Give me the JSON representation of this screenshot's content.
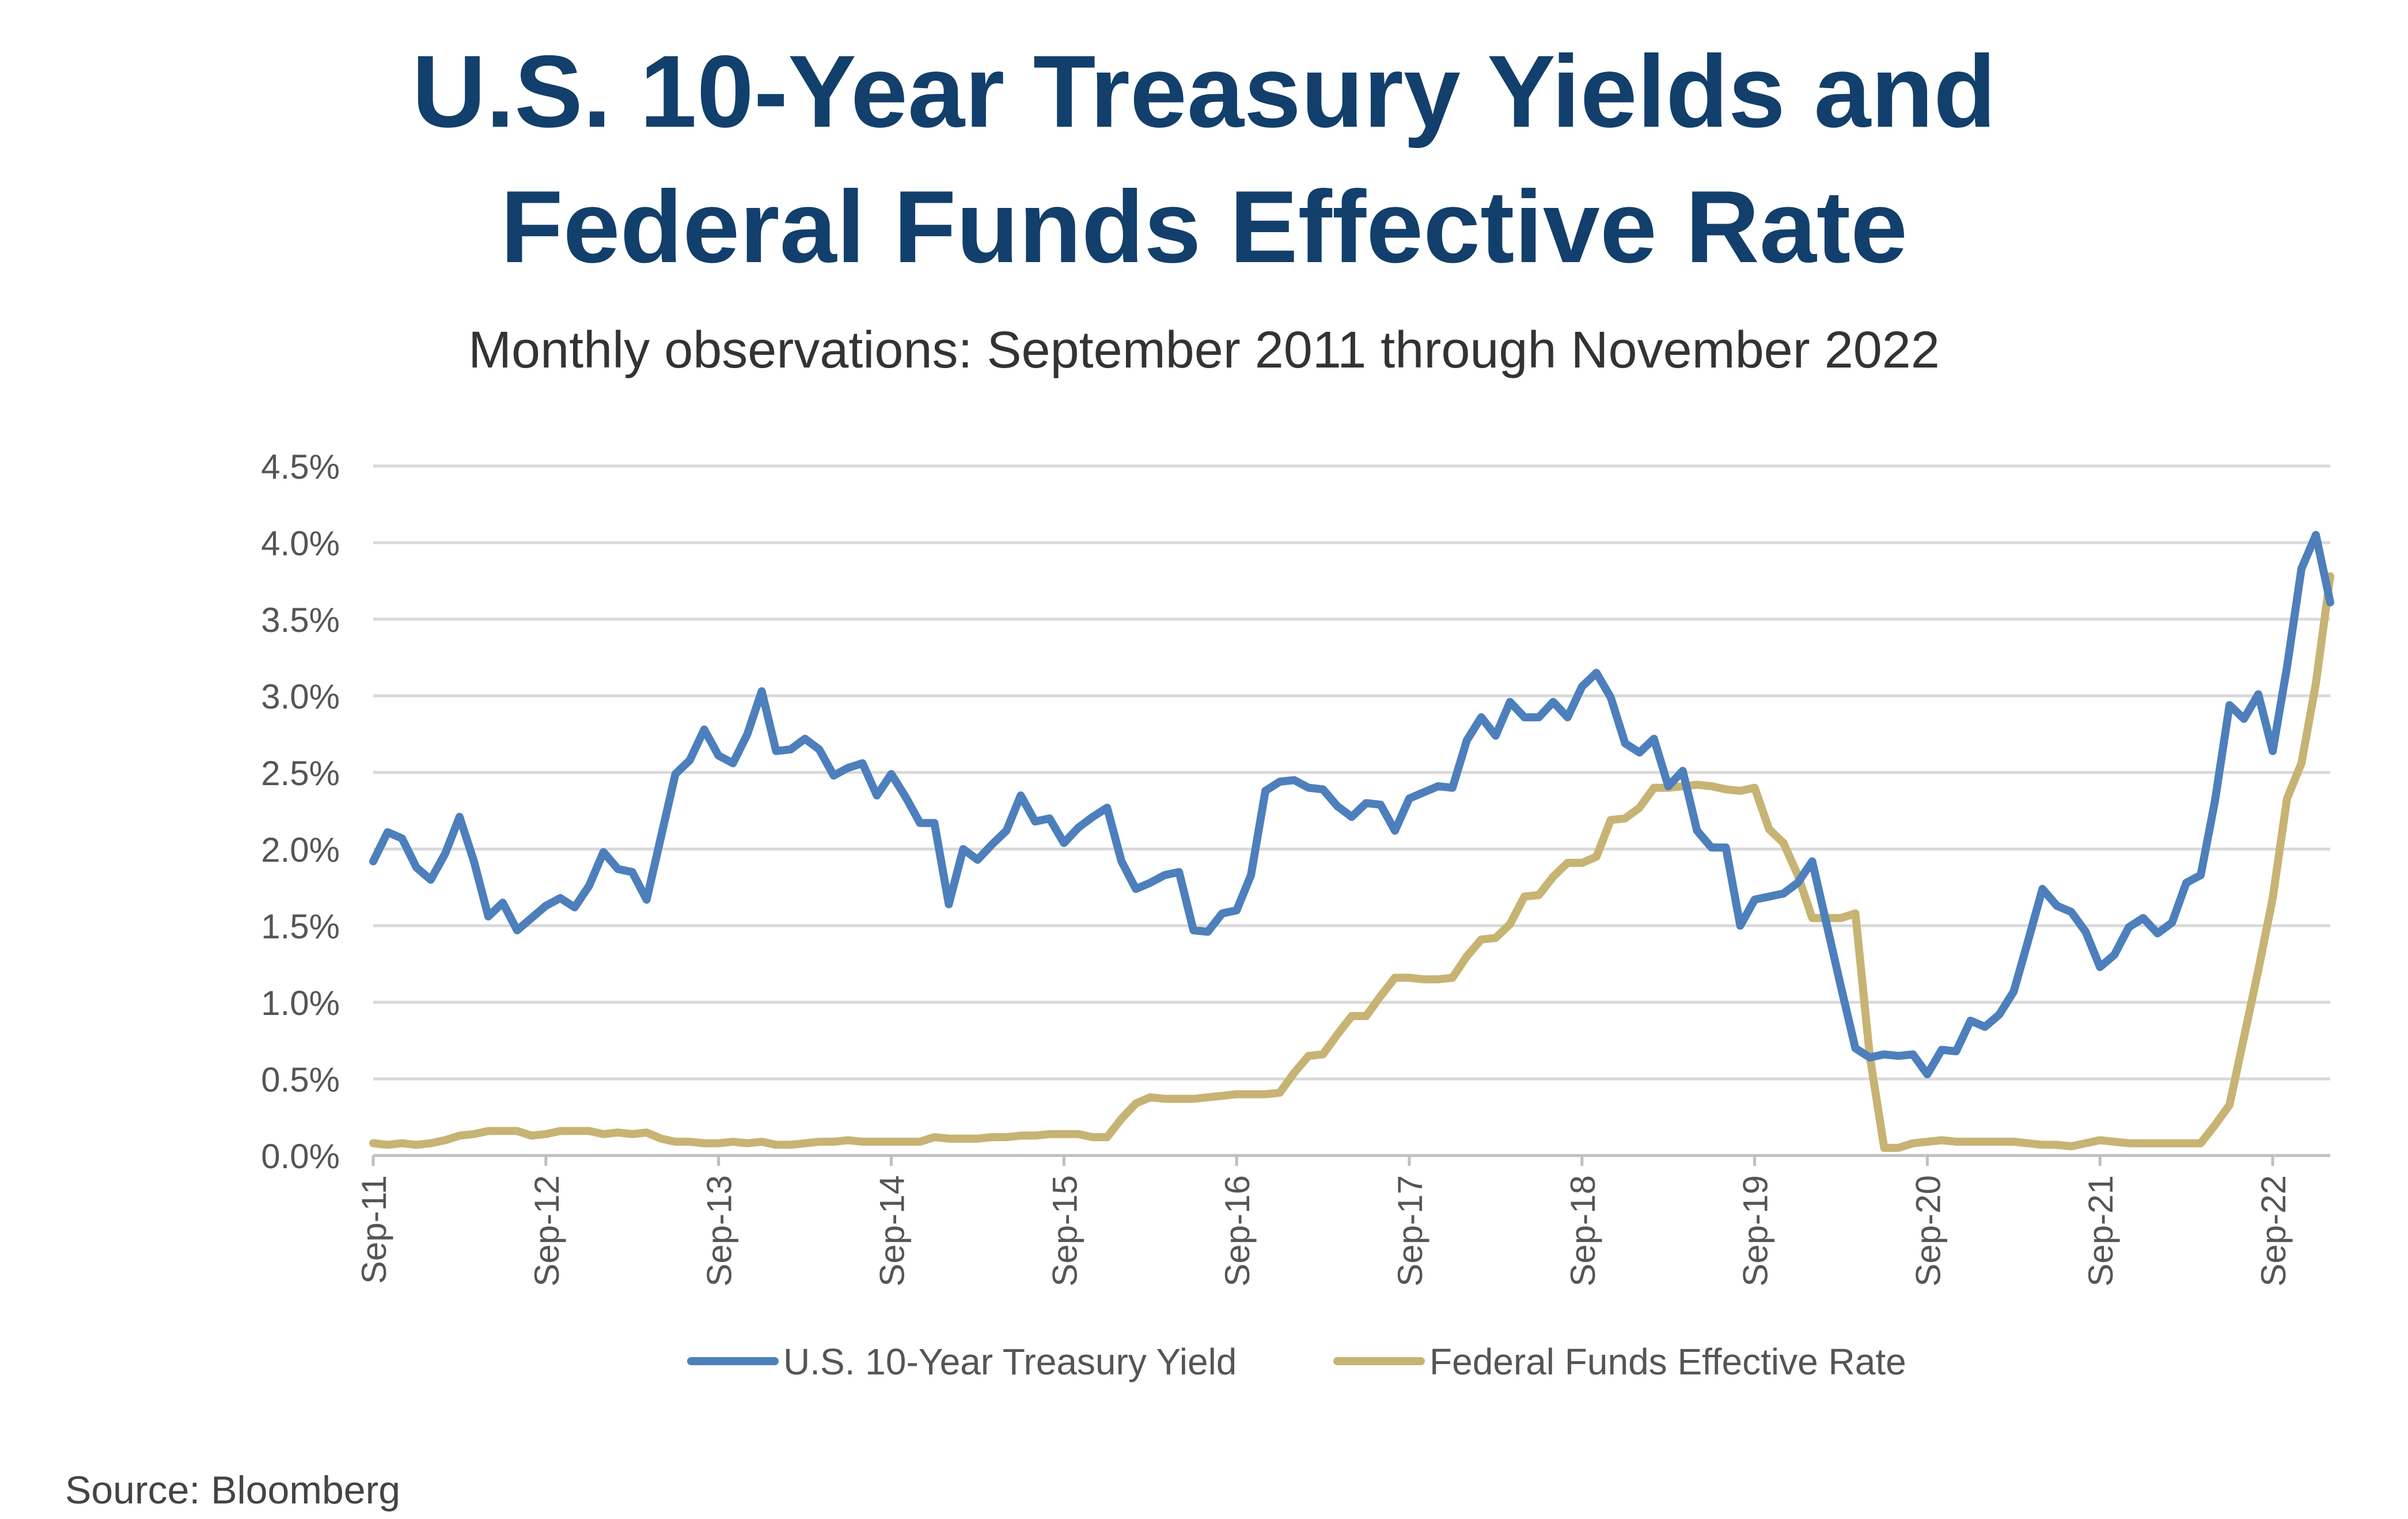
{
  "title_line1": "U.S. 10-Year Treasury Yields and",
  "title_line2": "Federal Funds Effective Rate",
  "subtitle": "Monthly observations: September 2011 through November 2022",
  "source": "Source: Bloomberg",
  "colors": {
    "title": "#123f6b",
    "treasury": "#4d7fbc",
    "fed_funds": "#c7b373",
    "grid": "#d9d9d9",
    "text": "#555555"
  },
  "chart_data": {
    "type": "line",
    "title": "U.S. 10-Year Treasury Yields and Federal Funds Effective Rate",
    "subtitle": "Monthly observations: September 2011 through November 2022",
    "xlabel": "",
    "ylabel": "",
    "x_start": "2011-09",
    "x_end": "2022-11",
    "x_ticks": [
      "Sep-11",
      "Sep-12",
      "Sep-13",
      "Sep-14",
      "Sep-15",
      "Sep-16",
      "Sep-17",
      "Sep-18",
      "Sep-19",
      "Sep-20",
      "Sep-21",
      "Sep-22"
    ],
    "y_ticks": [
      "0.0%",
      "0.5%",
      "1.0%",
      "1.5%",
      "2.0%",
      "2.5%",
      "3.0%",
      "3.5%",
      "4.0%",
      "4.5%"
    ],
    "ylim": [
      0,
      4.5
    ],
    "grid": true,
    "legend_position": "bottom",
    "series": [
      {
        "name": "U.S. 10-Year Treasury Yield",
        "color": "#4d7fbc",
        "values": [
          1.92,
          2.11,
          2.07,
          1.88,
          1.8,
          1.97,
          2.21,
          1.92,
          1.56,
          1.65,
          1.47,
          1.55,
          1.63,
          1.68,
          1.62,
          1.76,
          1.98,
          1.87,
          1.85,
          1.67,
          2.08,
          2.49,
          2.58,
          2.78,
          2.61,
          2.56,
          2.75,
          3.03,
          2.64,
          2.65,
          2.72,
          2.65,
          2.48,
          2.53,
          2.56,
          2.35,
          2.49,
          2.34,
          2.17,
          2.17,
          1.64,
          2.0,
          1.93,
          2.03,
          2.12,
          2.35,
          2.18,
          2.2,
          2.04,
          2.14,
          2.21,
          2.27,
          1.92,
          1.74,
          1.78,
          1.83,
          1.85,
          1.47,
          1.46,
          1.58,
          1.6,
          1.83,
          2.38,
          2.44,
          2.45,
          2.4,
          2.39,
          2.28,
          2.21,
          2.3,
          2.29,
          2.12,
          2.33,
          2.37,
          2.41,
          2.4,
          2.71,
          2.86,
          2.74,
          2.96,
          2.86,
          2.86,
          2.96,
          2.86,
          3.06,
          3.15,
          2.99,
          2.69,
          2.63,
          2.72,
          2.41,
          2.51,
          2.12,
          2.01,
          2.01,
          1.5,
          1.67,
          1.69,
          1.71,
          1.78,
          1.92,
          1.51,
          1.1,
          0.7,
          0.64,
          0.66,
          0.65,
          0.66,
          0.53,
          0.69,
          0.68,
          0.88,
          0.84,
          0.92,
          1.07,
          1.4,
          1.74,
          1.63,
          1.59,
          1.46,
          1.23,
          1.31,
          1.49,
          1.55,
          1.45,
          1.52,
          1.78,
          1.83,
          2.32,
          2.94,
          2.85,
          3.01,
          2.64,
          3.19,
          3.83,
          4.05,
          3.61
        ]
      },
      {
        "name": "Federal Funds Effective Rate",
        "color": "#c7b373",
        "values": [
          0.08,
          0.07,
          0.08,
          0.07,
          0.08,
          0.1,
          0.13,
          0.14,
          0.16,
          0.16,
          0.16,
          0.13,
          0.14,
          0.16,
          0.16,
          0.16,
          0.14,
          0.15,
          0.14,
          0.15,
          0.11,
          0.09,
          0.09,
          0.08,
          0.08,
          0.09,
          0.08,
          0.09,
          0.07,
          0.07,
          0.08,
          0.09,
          0.09,
          0.1,
          0.09,
          0.09,
          0.09,
          0.09,
          0.09,
          0.12,
          0.11,
          0.11,
          0.11,
          0.12,
          0.12,
          0.13,
          0.13,
          0.14,
          0.14,
          0.14,
          0.12,
          0.12,
          0.24,
          0.34,
          0.38,
          0.37,
          0.37,
          0.37,
          0.38,
          0.39,
          0.4,
          0.4,
          0.4,
          0.41,
          0.54,
          0.65,
          0.66,
          0.79,
          0.91,
          0.91,
          1.04,
          1.16,
          1.16,
          1.15,
          1.15,
          1.16,
          1.3,
          1.41,
          1.42,
          1.51,
          1.69,
          1.7,
          1.82,
          1.91,
          1.91,
          1.95,
          2.19,
          2.2,
          2.27,
          2.4,
          2.4,
          2.41,
          2.42,
          2.41,
          2.39,
          2.38,
          2.4,
          2.13,
          2.04,
          1.83,
          1.55,
          1.55,
          1.55,
          1.58,
          0.65,
          0.05,
          0.05,
          0.08,
          0.09,
          0.1,
          0.09,
          0.09,
          0.09,
          0.09,
          0.09,
          0.08,
          0.07,
          0.07,
          0.06,
          0.08,
          0.1,
          0.09,
          0.08,
          0.08,
          0.08,
          0.08,
          0.08,
          0.08,
          0.2,
          0.33,
          0.77,
          1.21,
          1.68,
          2.33,
          2.56,
          3.08,
          3.78
        ]
      }
    ]
  }
}
